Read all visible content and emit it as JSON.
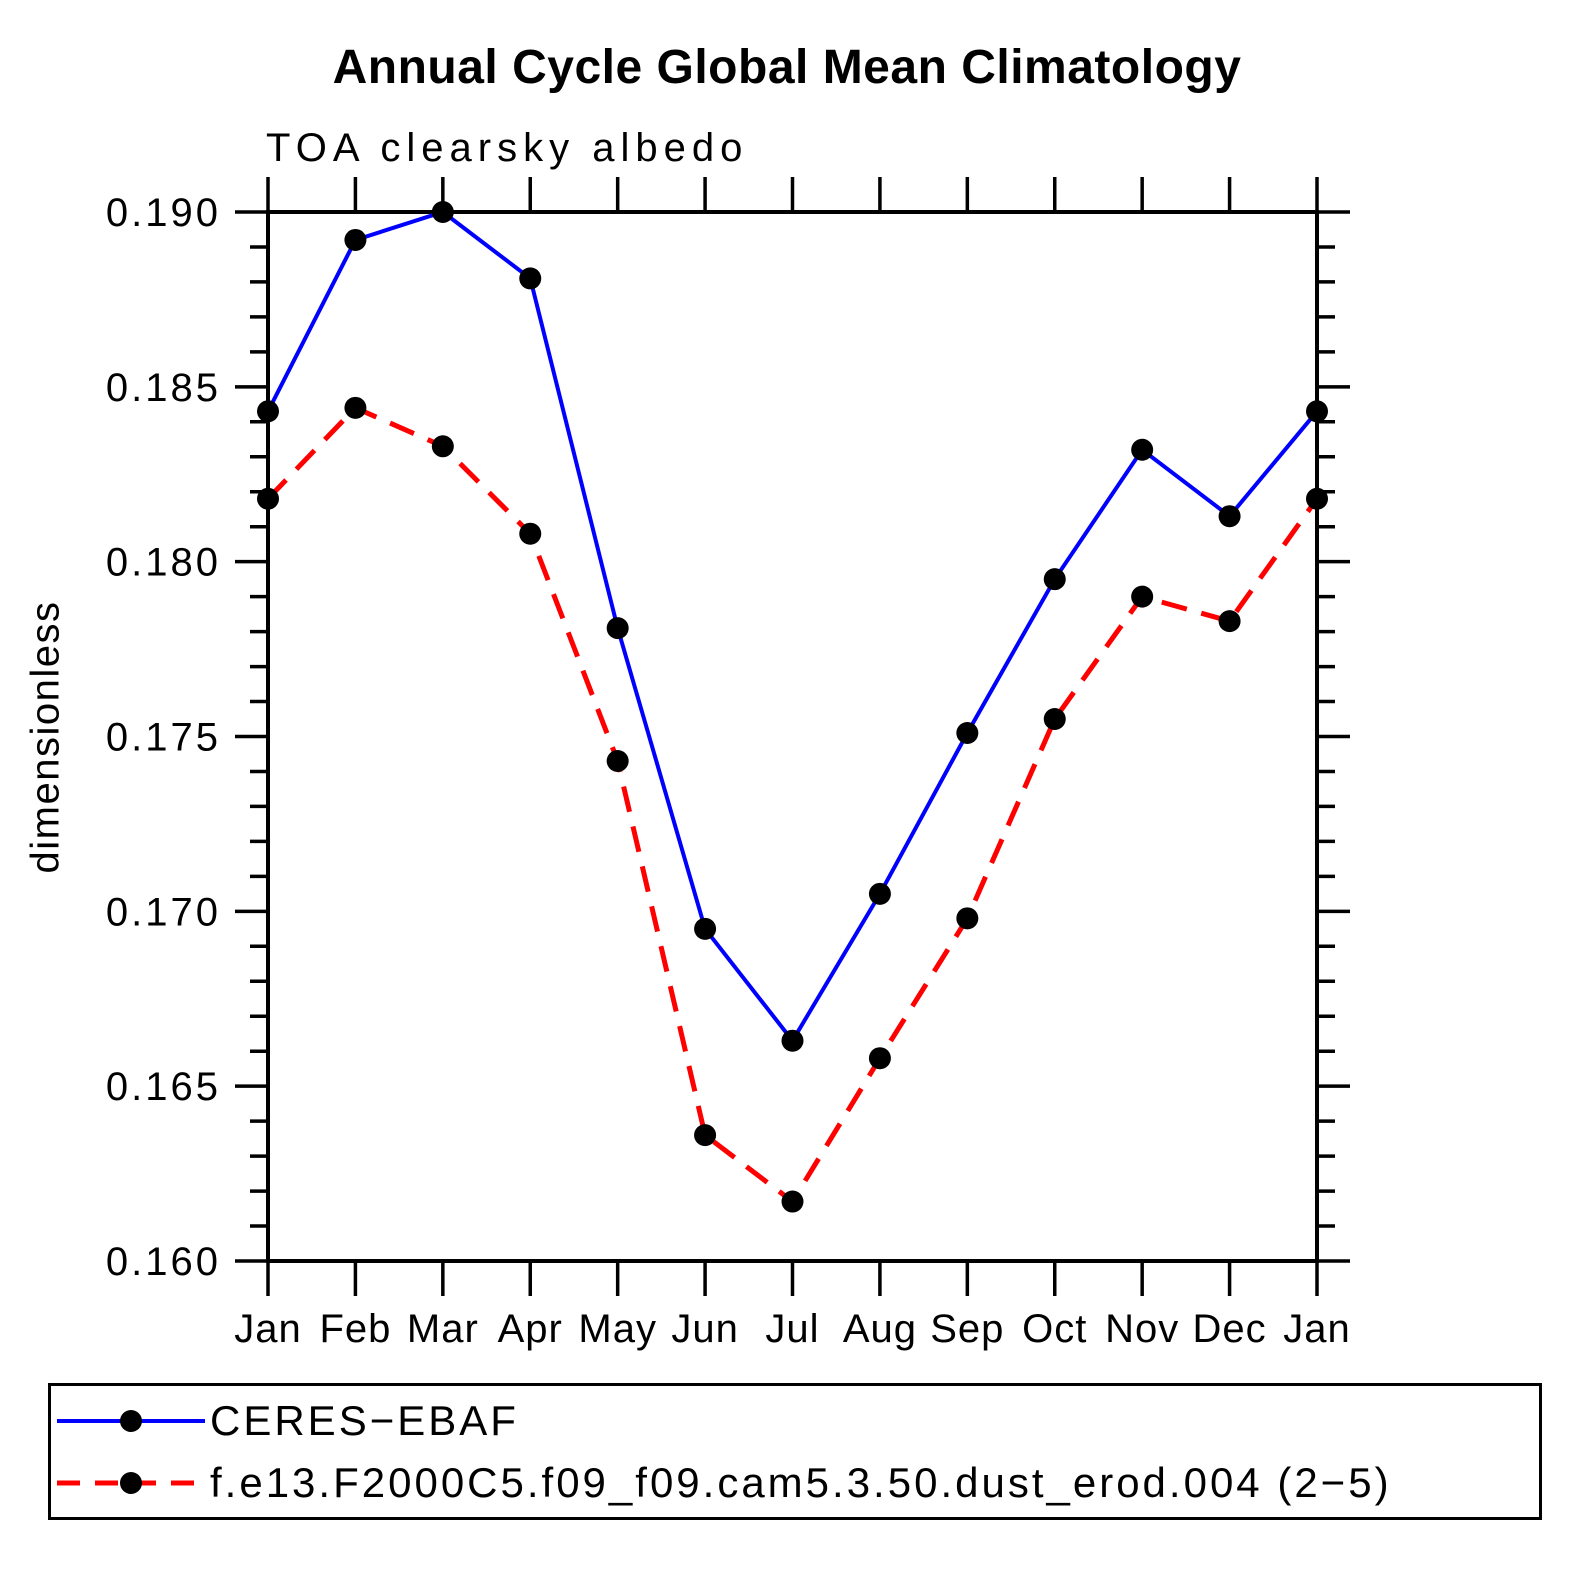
{
  "chart_data": {
    "type": "line",
    "title": "Annual Cycle Global Mean Climatology",
    "subtitle": "TOA clearsky albedo",
    "ylabel": "dimensionless",
    "xlabel": "",
    "categories": [
      "Jan",
      "Feb",
      "Mar",
      "Apr",
      "May",
      "Jun",
      "Jul",
      "Aug",
      "Sep",
      "Oct",
      "Nov",
      "Dec",
      "Jan"
    ],
    "series": [
      {
        "name": "CERES−EBAF",
        "color": "#0000ff",
        "line_style": "solid",
        "marker": "circle",
        "marker_color": "#000000",
        "values": [
          0.1843,
          0.1892,
          0.19,
          0.1881,
          0.1781,
          0.1695,
          0.1663,
          0.1705,
          0.1751,
          0.1795,
          0.1832,
          0.1813,
          0.1843
        ]
      },
      {
        "name": "f.e13.F2000C5.f09_f09.cam5.3.50.dust_erod.004 (2−5)",
        "color": "#ff0000",
        "line_style": "dashed",
        "marker": "circle",
        "marker_color": "#000000",
        "values": [
          0.1818,
          0.1844,
          0.1833,
          0.1808,
          0.1743,
          0.1636,
          0.1617,
          0.1658,
          0.1698,
          0.1755,
          0.179,
          0.1783,
          0.1818
        ]
      }
    ],
    "ylim": [
      0.16,
      0.19
    ],
    "ytick_major": 0.005,
    "ytick_minor": 0.001,
    "ytick_labels": [
      "0.160",
      "0.165",
      "0.170",
      "0.175",
      "0.180",
      "0.185",
      "0.190"
    ],
    "grid": false,
    "legend_position": "bottom",
    "axis_color": "#000000"
  }
}
